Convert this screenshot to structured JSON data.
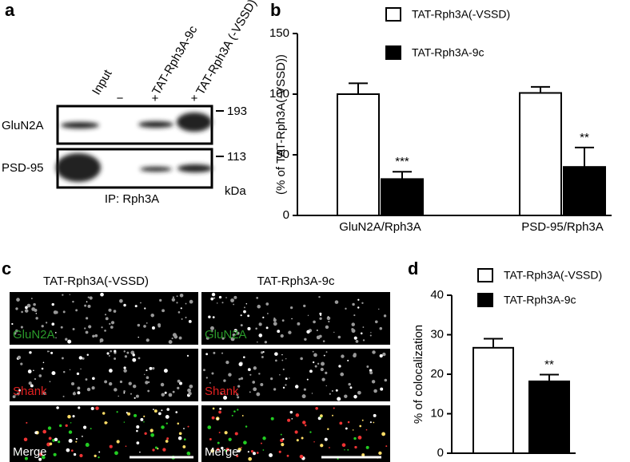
{
  "panel_labels": [
    "a",
    "b",
    "c",
    "d"
  ],
  "blot": {
    "lanes": [
      "Input",
      "TAT-Rph3A-9c",
      "TAT-Rph3A (-VSSD)"
    ],
    "lane_marks": [
      "−",
      "+",
      "+"
    ],
    "rows": [
      "GluN2A",
      "PSD-95"
    ],
    "markers": [
      "193",
      "113"
    ],
    "unit": "kDa",
    "ip": "IP: Rph3A"
  },
  "micrographs": {
    "columns": [
      "TAT-Rph3A(-VSSD)",
      "TAT-Rph3A-9c"
    ],
    "rows": [
      "GluN2A",
      "Shank",
      "Merge"
    ]
  },
  "chart_data": [
    {
      "type": "bar",
      "y_label": "(% of TAT-Rph3A(-VSSD))",
      "categories": [
        "GluN2A/Rph3A",
        "PSD-95/Rph3A"
      ],
      "series": [
        {
          "name": "TAT-Rph3A(-VSSD)",
          "color": "#ffffff",
          "values": [
            100,
            101
          ],
          "errors": [
            9,
            5
          ]
        },
        {
          "name": "TAT-Rph3A-9c",
          "color": "#000000",
          "values": [
            30,
            40
          ],
          "errors": [
            6,
            16
          ],
          "significance": [
            "***",
            "**"
          ]
        }
      ],
      "ylim": [
        0,
        150
      ],
      "yticks": [
        0,
        50,
        100,
        150
      ]
    },
    {
      "type": "bar",
      "y_label": "% of colocalization",
      "categories": [
        null
      ],
      "series": [
        {
          "name": "TAT-Rph3A(-VSSD)",
          "color": "#ffffff",
          "values": [
            26.7
          ],
          "errors": [
            2.3
          ]
        },
        {
          "name": "TAT-Rph3A-9c",
          "color": "#000000",
          "values": [
            18.2
          ],
          "errors": [
            1.7
          ],
          "significance": [
            "**"
          ]
        }
      ],
      "ylim": [
        0,
        40
      ],
      "yticks": [
        0,
        10,
        20,
        30,
        40
      ]
    }
  ]
}
